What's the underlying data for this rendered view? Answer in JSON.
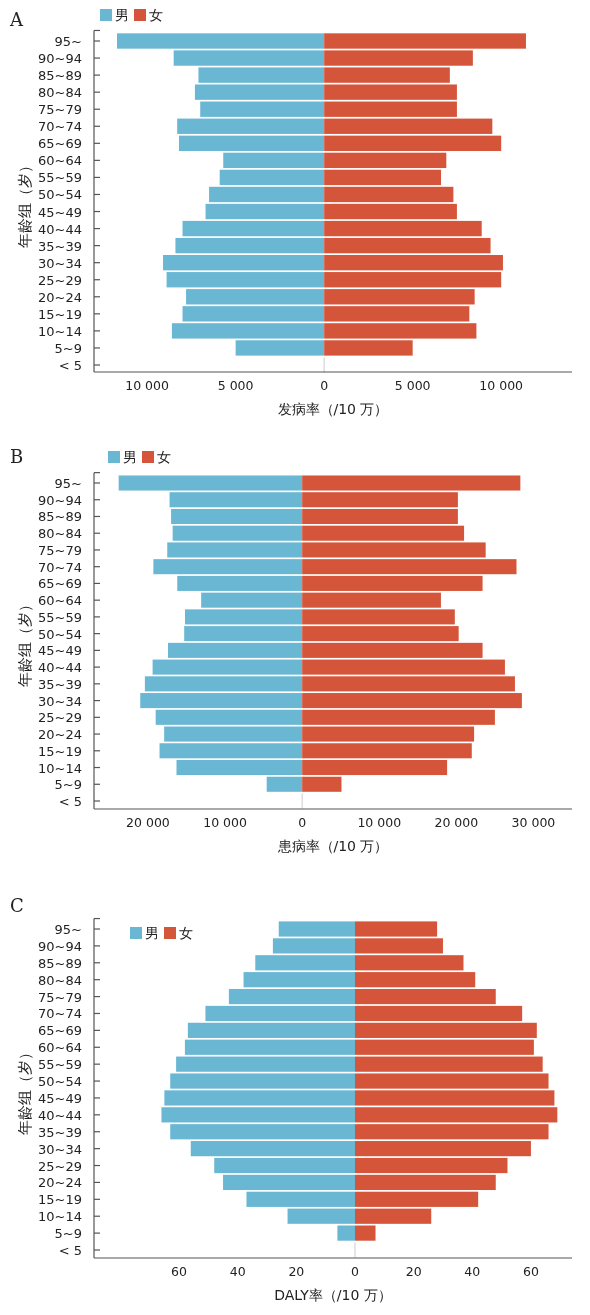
{
  "chart_data": [
    {
      "type": "bar",
      "orientation": "horizontal",
      "title": "A",
      "stacked": true,
      "xlabel": "发病率（/10 万）",
      "ylabel": "年龄组（岁）",
      "legend": "top left",
      "categories": [
        "95~",
        "90~94",
        "85~89",
        "80~84",
        "75~79",
        "70~74",
        "65~69",
        "60~64",
        "55~59",
        "50~54",
        "45~49",
        "40~44",
        "35~39",
        "30~34",
        "25~29",
        "20~24",
        "15~19",
        "10~14",
        "5~9",
        "< 5"
      ],
      "xlim": [
        -13000,
        14000
      ],
      "xticks": [
        {
          "value": -10000,
          "label": "10 000"
        },
        {
          "value": -5000,
          "label": "5 000"
        },
        0,
        {
          "value": 5000,
          "label": "5 000"
        },
        {
          "value": 10000,
          "label": "10 000"
        }
      ],
      "series": [
        {
          "name": "男",
          "color": "#6ab7d3",
          "values": [
            -11700,
            -8500,
            -7100,
            -7300,
            -7000,
            -8300,
            -8200,
            -5700,
            -5900,
            -6500,
            -6700,
            -8000,
            -8400,
            -9100,
            -8900,
            -7800,
            -8000,
            -8600,
            -5000,
            0
          ]
        },
        {
          "name": "女",
          "color": "#d5553b",
          "values": [
            11400,
            8400,
            7100,
            7500,
            7500,
            9500,
            10000,
            6900,
            6600,
            7300,
            7500,
            8900,
            9400,
            10100,
            10000,
            8500,
            8200,
            8600,
            5000,
            0
          ]
        }
      ]
    },
    {
      "type": "bar",
      "orientation": "horizontal",
      "title": "B",
      "stacked": true,
      "xlabel": "患病率（/10 万）",
      "ylabel": "年龄组（岁）",
      "legend": "top left",
      "categories": [
        "95~",
        "90~94",
        "85~89",
        "80~84",
        "75~79",
        "70~74",
        "65~69",
        "60~64",
        "55~59",
        "50~54",
        "45~49",
        "40~44",
        "35~39",
        "30~34",
        "25~29",
        "20~24",
        "15~19",
        "10~14",
        "5~9",
        "< 5"
      ],
      "xlim": [
        -27000,
        35000
      ],
      "xticks": [
        {
          "value": -20000,
          "label": "20 000"
        },
        {
          "value": -10000,
          "label": "10 000"
        },
        0,
        {
          "value": 10000,
          "label": "10 000"
        },
        {
          "value": 20000,
          "label": "20 000"
        },
        {
          "value": 30000,
          "label": "30 000"
        }
      ],
      "series": [
        {
          "name": "男",
          "color": "#6ab7d3",
          "values": [
            -23800,
            -17200,
            -17000,
            -16800,
            -17500,
            -19300,
            -16200,
            -13100,
            -15200,
            -15300,
            -17400,
            -19400,
            -20400,
            -21000,
            -19000,
            -17900,
            -18500,
            -16300,
            -4600,
            0
          ]
        },
        {
          "name": "女",
          "color": "#d5553b",
          "values": [
            28300,
            20200,
            20200,
            21000,
            23800,
            27800,
            23400,
            18000,
            19800,
            20300,
            23400,
            26300,
            27600,
            28500,
            25000,
            22300,
            22000,
            18800,
            5100,
            0
          ]
        }
      ]
    },
    {
      "type": "bar",
      "orientation": "horizontal",
      "title": "C",
      "stacked": true,
      "xlabel": "DALY率（/10 万）",
      "ylabel": "年龄组（岁）",
      "legend": "top left",
      "categories": [
        "95~",
        "90~94",
        "85~89",
        "80~84",
        "75~79",
        "70~74",
        "65~69",
        "60~64",
        "55~59",
        "50~54",
        "45~49",
        "40~44",
        "35~39",
        "30~34",
        "25~29",
        "20~24",
        "15~19",
        "10~14",
        "5~9",
        "< 5"
      ],
      "xlim": [
        -89,
        74
      ],
      "xticks": [
        {
          "value": -60,
          "label": "60"
        },
        {
          "value": -40,
          "label": "40"
        },
        {
          "value": -20,
          "label": "20"
        },
        0,
        20,
        40,
        60
      ],
      "series": [
        {
          "name": "男",
          "color": "#6ab7d3",
          "values": [
            -26,
            -28,
            -34,
            -38,
            -43,
            -51,
            -57,
            -58,
            -61,
            -63,
            -65,
            -66,
            -63,
            -56,
            -48,
            -45,
            -37,
            -23,
            -6,
            0
          ]
        },
        {
          "name": "女",
          "color": "#d5553b",
          "values": [
            28,
            30,
            37,
            41,
            48,
            57,
            62,
            61,
            64,
            66,
            68,
            69,
            66,
            60,
            52,
            48,
            42,
            26,
            7,
            0
          ]
        }
      ]
    }
  ]
}
